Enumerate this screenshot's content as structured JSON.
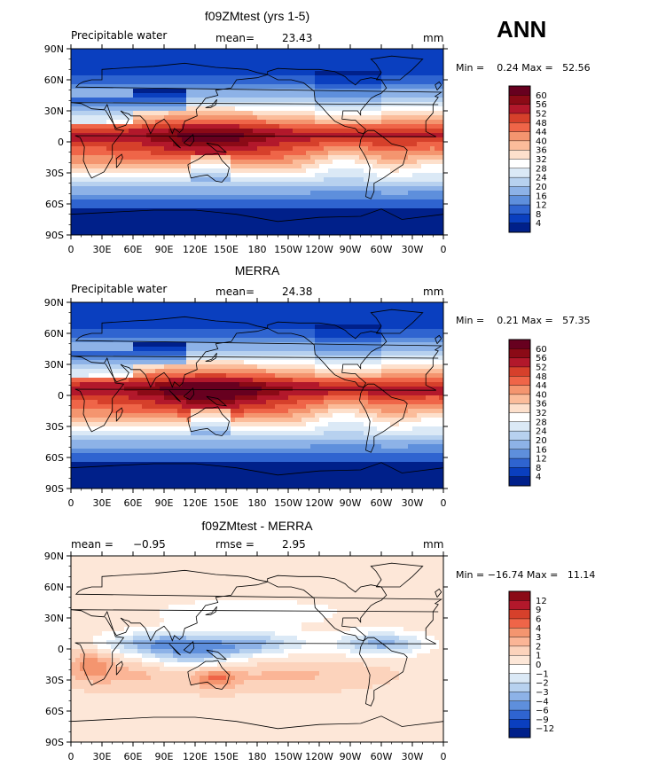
{
  "season": "ANN",
  "chart_data": [
    {
      "type": "heatmap",
      "title": "f09ZMtest (yrs 1-5)",
      "variable": "Precipitable water",
      "stat_label": "mean=",
      "stat_value": "23.43",
      "units": "mm",
      "minmax": "Min =    0.24 Max =   52.56",
      "xticks": [
        "0",
        "30E",
        "60E",
        "90E",
        "120E",
        "150E",
        "180",
        "150W",
        "120W",
        "90W",
        "60W",
        "30W",
        "0"
      ],
      "yticks": [
        "90N",
        "60N",
        "30N",
        "0",
        "30S",
        "60S",
        "90S"
      ],
      "colorbar": {
        "levels": [
          "60",
          "56",
          "52",
          "48",
          "44",
          "40",
          "36",
          "32",
          "28",
          "24",
          "20",
          "16",
          "12",
          "8",
          "4"
        ],
        "colors": [
          "#67001f",
          "#8b0a16",
          "#b2182b",
          "#d6402b",
          "#ef6548",
          "#f4956f",
          "#fbbc9a",
          "#fde0cc",
          "#ffffff",
          "#dbe9f6",
          "#b7d1ef",
          "#8db2e7",
          "#5e8fdc",
          "#2f64d0",
          "#0a3fbf",
          "#00208a"
        ]
      },
      "field": "pw_model"
    },
    {
      "type": "heatmap",
      "title": "MERRA",
      "variable": "Precipitable water",
      "stat_label": "mean=",
      "stat_value": "24.38",
      "units": "mm",
      "minmax": "Min =    0.21 Max =   57.35",
      "xticks": [
        "0",
        "30E",
        "60E",
        "90E",
        "120E",
        "150E",
        "180",
        "150W",
        "120W",
        "90W",
        "60W",
        "30W",
        "0"
      ],
      "yticks": [
        "90N",
        "60N",
        "30N",
        "0",
        "30S",
        "60S",
        "90S"
      ],
      "colorbar": {
        "levels": [
          "60",
          "56",
          "52",
          "48",
          "44",
          "40",
          "36",
          "32",
          "28",
          "24",
          "20",
          "16",
          "12",
          "8",
          "4"
        ],
        "colors": [
          "#67001f",
          "#8b0a16",
          "#b2182b",
          "#d6402b",
          "#ef6548",
          "#f4956f",
          "#fbbc9a",
          "#fde0cc",
          "#ffffff",
          "#dbe9f6",
          "#b7d1ef",
          "#8db2e7",
          "#5e8fdc",
          "#2f64d0",
          "#0a3fbf",
          "#00208a"
        ]
      },
      "field": "pw_obs"
    },
    {
      "type": "heatmap",
      "title": "f09ZMtest - MERRA",
      "stat_label": "mean =",
      "stat_value": "−0.95",
      "stat2_label": "rmse =",
      "stat2_value": "2.95",
      "units": "mm",
      "minmax": "Min = −16.74 Max =   11.14",
      "xticks": [
        "0",
        "30E",
        "60E",
        "90E",
        "120E",
        "150E",
        "180",
        "150W",
        "120W",
        "90W",
        "60W",
        "30W",
        "0"
      ],
      "yticks": [
        "90N",
        "60N",
        "30N",
        "0",
        "30S",
        "60S",
        "90S"
      ],
      "colorbar": {
        "levels": [
          "12",
          "9",
          "6",
          "4",
          "3",
          "2",
          "1",
          "0",
          "−1",
          "−2",
          "−3",
          "−4",
          "−6",
          "−9",
          "−12"
        ],
        "colors": [
          "#8b0a16",
          "#b2182b",
          "#d6402b",
          "#ef6548",
          "#f4956f",
          "#fbb596",
          "#fcd3bc",
          "#fde7d8",
          "#ffffff",
          "#dbe9f6",
          "#b7d1ef",
          "#8db2e7",
          "#5e8fdc",
          "#2f64d0",
          "#0a3fbf",
          "#00208a"
        ]
      },
      "field": "pw_diff"
    }
  ]
}
